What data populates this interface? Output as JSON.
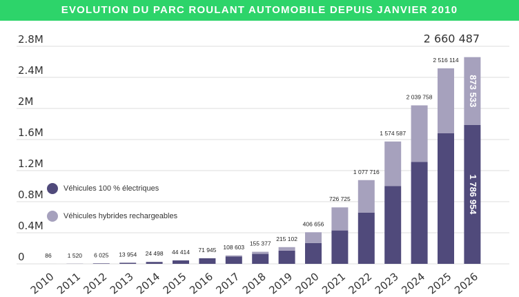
{
  "chart_data": {
    "type": "bar",
    "stacked": true,
    "title": "EVOLUTION DU PARC ROULANT AUTOMOBILE DEPUIS JANVIER 2010",
    "categories": [
      "2010",
      "2011",
      "2012",
      "2013",
      "2014",
      "2015",
      "2016",
      "2017",
      "2018",
      "2019",
      "2020",
      "2021",
      "2022",
      "2023",
      "2024",
      "2025",
      "2026"
    ],
    "series": [
      {
        "name": "Véhicules 100 % électriques",
        "color": "#504a7b",
        "values": [
          86,
          1520,
          6025,
          13954,
          24498,
          44414,
          71945,
          95000,
          128000,
          170000,
          268000,
          430000,
          660000,
          1000000,
          1312000,
          1680000,
          1786954
        ]
      },
      {
        "name": "Véhicules hybrides rechargeables",
        "color": "#a6a1bd",
        "values": [
          0,
          0,
          0,
          0,
          0,
          0,
          0,
          13603,
          27377,
          45102,
          138656,
          296725,
          417716,
          574587,
          727758,
          836114,
          873533
        ]
      }
    ],
    "total_labels": [
      "86",
      "1 520",
      "6 025",
      "13 954",
      "24 498",
      "44 414",
      "71 945",
      "108 603",
      "155 377",
      "215 102",
      "406 656",
      "726 725",
      "1 077 716",
      "1 574 587",
      "2 039 758",
      "2 516 114",
      "2 660 487"
    ],
    "segment_labels_last": {
      "electric": "1 786 954",
      "hybrid": "873 533"
    },
    "y_ticks": [
      "0",
      "0.4M",
      "0.8M",
      "1.2M",
      "1.6M",
      "2M",
      "2.4M",
      "2.8M"
    ],
    "y_tick_values": [
      0,
      400000,
      800000,
      1200000,
      1600000,
      2000000,
      2400000,
      2800000
    ],
    "ylim": [
      0,
      2800000
    ],
    "grid": true,
    "legend_placement": "left-middle"
  }
}
